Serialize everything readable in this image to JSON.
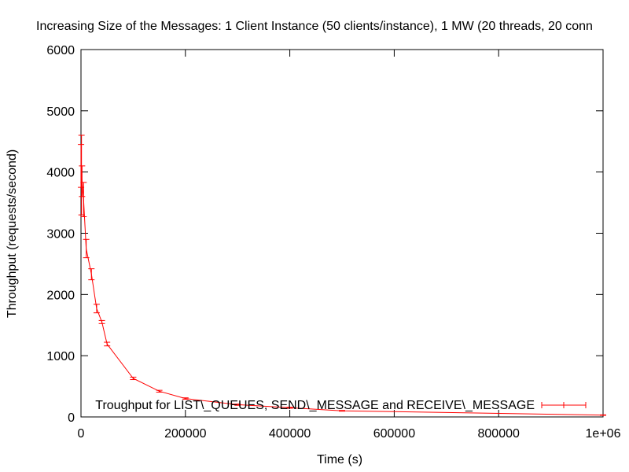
{
  "chart_data": {
    "type": "line",
    "title": "Increasing Size of the Messages: 1 Client Instance (50 clients/instance), 1 MW (20 threads, 20 conn",
    "xlabel": "Time (s)",
    "ylabel": "Throughput (requests/second)",
    "xlim": [
      0,
      1000000
    ],
    "ylim": [
      0,
      6000
    ],
    "xticks": [
      0,
      200000,
      400000,
      600000,
      800000,
      1000000
    ],
    "xtick_labels": [
      "0",
      "200000",
      "400000",
      "600000",
      "800000",
      "1e+06"
    ],
    "yticks": [
      0,
      1000,
      2000,
      3000,
      4000,
      5000,
      6000
    ],
    "ytick_labels": [
      "0",
      "1000",
      "2000",
      "3000",
      "4000",
      "5000",
      "6000"
    ],
    "grid": false,
    "legend_position": "bottom-right",
    "series": [
      {
        "name": "Troughput for LIST\\_QUEUES, SEND\\_MESSAGE and RECEIVE\\_MESSAGE",
        "color": "#ff0000",
        "style": "lines with y-error bars",
        "x": [
          100,
          1000,
          2000,
          5000,
          10000,
          20000,
          30000,
          40000,
          50000,
          100000,
          150000,
          200000,
          300000,
          400000,
          500000,
          1000000
        ],
        "y": [
          4100,
          3950,
          3850,
          3550,
          2750,
          2330,
          1770,
          1550,
          1190,
          630,
          420,
          300,
          200,
          150,
          100,
          30
        ],
        "err": [
          350,
          650,
          250,
          280,
          150,
          90,
          70,
          25,
          30,
          20,
          15,
          12,
          10,
          8,
          6,
          4
        ]
      }
    ]
  }
}
